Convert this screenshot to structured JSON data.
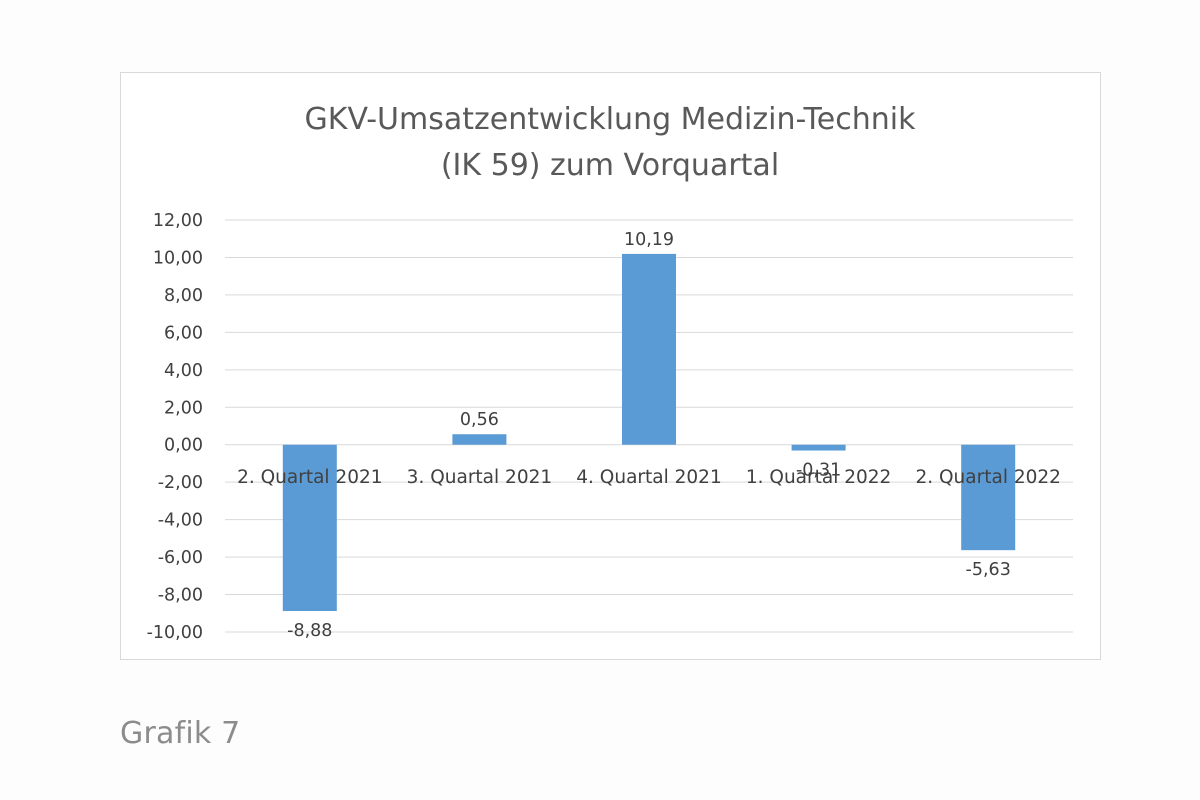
{
  "caption": "Grafik 7",
  "chart_data": {
    "type": "bar",
    "title_lines": [
      "GKV-Umsatzentwicklung Medizin-Technik",
      "(IK 59) zum Vorquartal"
    ],
    "categories": [
      "2. Quartal 2021",
      "3. Quartal 2021",
      "4. Quartal 2021",
      "1. Quartal 2022",
      "2. Quartal 2022"
    ],
    "values": [
      -8.88,
      0.56,
      10.19,
      -0.31,
      -5.63
    ],
    "value_labels": [
      "-8,88",
      "0,56",
      "10,19",
      "-0,31",
      "-5,63"
    ],
    "ylim": [
      -10,
      12
    ],
    "yticks": [
      12,
      10,
      8,
      6,
      4,
      2,
      0,
      -2,
      -4,
      -6,
      -8,
      -10
    ],
    "ytick_labels": [
      "12,00",
      "10,00",
      "8,00",
      "6,00",
      "4,00",
      "2,00",
      "0,00",
      "-2,00",
      "-4,00",
      "-6,00",
      "-8,00",
      "-10,00"
    ],
    "grid": true,
    "legend": "none",
    "colors": {
      "bar": "#5b9bd5",
      "grid": "#d9d9d9"
    }
  }
}
